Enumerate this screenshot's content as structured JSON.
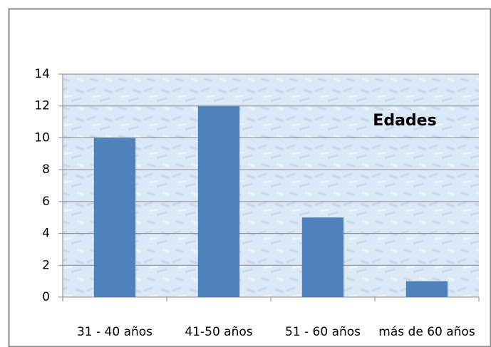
{
  "chart_data": {
    "type": "bar",
    "title": "Edades",
    "categories": [
      "31 - 40 años",
      "41-50 años",
      "51 - 60 años",
      "más de 60 años"
    ],
    "values": [
      10,
      12,
      5,
      1
    ],
    "color": "#4f81bd",
    "ylim": [
      0,
      14
    ],
    "yticks": [
      0,
      2,
      4,
      6,
      8,
      10,
      12,
      14
    ],
    "grid": true
  }
}
